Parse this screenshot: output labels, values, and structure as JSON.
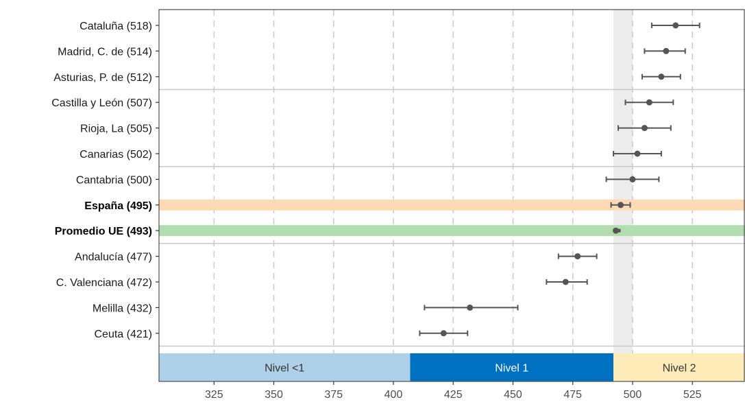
{
  "chart_data": {
    "type": "dot-errorbar",
    "categories": [
      {
        "label": "Cataluña (518)",
        "value": 518,
        "low": 508,
        "high": 528,
        "bold": false
      },
      {
        "label": "Madrid, C. de (514)",
        "value": 514,
        "low": 505,
        "high": 522,
        "bold": false
      },
      {
        "label": "Asturias, P. de (512)",
        "value": 512,
        "low": 504,
        "high": 520,
        "bold": false
      },
      {
        "label": "Castilla y León (507)",
        "value": 507,
        "low": 497,
        "high": 517,
        "bold": false
      },
      {
        "label": "Rioja, La (505)",
        "value": 505,
        "low": 494,
        "high": 516,
        "bold": false
      },
      {
        "label": "Canarias (502)",
        "value": 502,
        "low": 492,
        "high": 512,
        "bold": false
      },
      {
        "label": "Cantabria (500)",
        "value": 500,
        "low": 489,
        "high": 511,
        "bold": false
      },
      {
        "label": "España (495)",
        "value": 495,
        "low": 491,
        "high": 499,
        "bold": true,
        "highlight": "#fdd9b5"
      },
      {
        "label": "Promedio UE (493)",
        "value": 493,
        "low": 492,
        "high": 495,
        "bold": true,
        "highlight": "#b2ddb0"
      },
      {
        "label": "Andalucía (477)",
        "value": 477,
        "low": 469,
        "high": 485,
        "bold": false
      },
      {
        "label": "C. Valenciana (472)",
        "value": 472,
        "low": 464,
        "high": 481,
        "bold": false
      },
      {
        "label": "Melilla (432)",
        "value": 432,
        "low": 413,
        "high": 452,
        "bold": false
      },
      {
        "label": "Ceuta (421)",
        "value": 421,
        "low": 411,
        "high": 431,
        "bold": false
      }
    ],
    "group_separators_after": [
      2,
      5,
      8,
      12
    ],
    "x_ticks": [
      "325",
      "350",
      "375",
      "400",
      "425",
      "450",
      "475",
      "500",
      "525"
    ],
    "x_tick_values": [
      325,
      350,
      375,
      400,
      425,
      450,
      475,
      500,
      525
    ],
    "xlim": [
      302,
      547
    ],
    "shaded_region": [
      492,
      500
    ],
    "levels": [
      {
        "label": "Nivel <1",
        "from": 302,
        "to": 407,
        "color": "#aed0e9",
        "text_color": "#333333"
      },
      {
        "label": "Nivel 1",
        "from": 407,
        "to": 492,
        "color": "#0070c0",
        "text_color": "#ffffff"
      },
      {
        "label": "Nivel 2",
        "from": 492,
        "to": 547,
        "color": "#fdecb8",
        "text_color": "#333333"
      }
    ],
    "colors": {
      "point": "#555555",
      "errorbar": "#555555",
      "grid": "#cccccc",
      "separator": "#c8c8c8",
      "shade": "#ececec"
    }
  }
}
